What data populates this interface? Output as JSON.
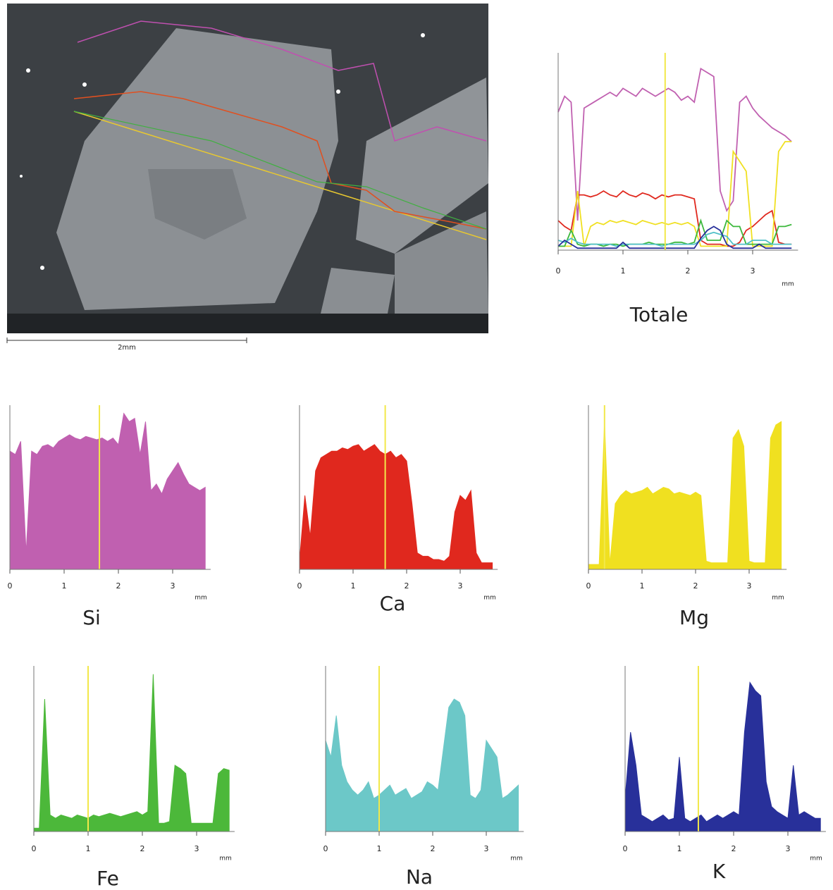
{
  "image": {
    "scale_label": "2mm"
  },
  "chart_data": [
    {
      "type": "line",
      "title": "Totale",
      "xlabel": "mm",
      "xlim": [
        0,
        3.7
      ],
      "xticks": [
        0,
        1,
        2,
        3
      ],
      "ylim": [
        0,
        100
      ],
      "cursor_x": 1.65,
      "cursor_color": "#f2e84a",
      "x": [
        0,
        0.1,
        0.2,
        0.3,
        0.4,
        0.5,
        0.6,
        0.7,
        0.8,
        0.9,
        1,
        1.1,
        1.2,
        1.3,
        1.4,
        1.5,
        1.6,
        1.7,
        1.8,
        1.9,
        2,
        2.1,
        2.2,
        2.3,
        2.4,
        2.5,
        2.6,
        2.7,
        2.8,
        2.9,
        3,
        3.1,
        3.2,
        3.3,
        3.4,
        3.5,
        3.6
      ],
      "series": [
        {
          "color": "#c060b0",
          "values": [
            70,
            78,
            75,
            15,
            72,
            74,
            76,
            78,
            80,
            78,
            82,
            80,
            78,
            82,
            80,
            78,
            80,
            82,
            80,
            76,
            78,
            75,
            92,
            90,
            88,
            30,
            20,
            25,
            75,
            78,
            72,
            68,
            65,
            62,
            60,
            58,
            55
          ]
        },
        {
          "color": "#e0281e",
          "values": [
            15,
            12,
            10,
            28,
            28,
            27,
            28,
            30,
            28,
            27,
            30,
            28,
            27,
            29,
            28,
            26,
            28,
            27,
            28,
            28,
            27,
            26,
            5,
            3,
            3,
            3,
            2,
            2,
            4,
            10,
            12,
            15,
            18,
            20,
            4,
            3,
            3
          ]
        },
        {
          "color": "#f0e020",
          "values": [
            2,
            2,
            2,
            30,
            2,
            12,
            14,
            13,
            15,
            14,
            15,
            14,
            13,
            15,
            14,
            13,
            14,
            13,
            14,
            13,
            14,
            12,
            2,
            2,
            2,
            2,
            2,
            50,
            45,
            40,
            2,
            2,
            2,
            2,
            50,
            55,
            55
          ]
        },
        {
          "color": "#3cb83c",
          "values": [
            2,
            2,
            10,
            3,
            2,
            3,
            3,
            2,
            3,
            3,
            2,
            3,
            3,
            3,
            4,
            3,
            3,
            3,
            4,
            4,
            3,
            4,
            15,
            5,
            5,
            5,
            15,
            12,
            12,
            3,
            3,
            3,
            3,
            3,
            12,
            12,
            13
          ]
        },
        {
          "color": "#50c0c8",
          "values": [
            5,
            4,
            6,
            4,
            3,
            3,
            3,
            3,
            3,
            2,
            3,
            3,
            3,
            3,
            3,
            3,
            2,
            3,
            3,
            3,
            3,
            3,
            5,
            8,
            9,
            8,
            7,
            3,
            3,
            3,
            5,
            5,
            5,
            3,
            3,
            3,
            3
          ]
        },
        {
          "color": "#28309a",
          "values": [
            2,
            5,
            3,
            1,
            1,
            1,
            1,
            1,
            1,
            1,
            4,
            1,
            1,
            1,
            1,
            1,
            1,
            1,
            1,
            1,
            1,
            1,
            6,
            10,
            12,
            10,
            3,
            1,
            1,
            1,
            1,
            3,
            1,
            1,
            1,
            1,
            1
          ]
        }
      ]
    },
    {
      "type": "area",
      "title": "Si",
      "xlabel": "mm",
      "xlim": [
        0,
        3.7
      ],
      "xticks": [
        0,
        1,
        2,
        3
      ],
      "ylim": [
        0,
        100
      ],
      "cursor_x": 1.65,
      "cursor_color": "#f2e84a",
      "color": "#c060b0",
      "x": [
        0,
        0.1,
        0.2,
        0.3,
        0.4,
        0.5,
        0.6,
        0.7,
        0.8,
        0.9,
        1,
        1.1,
        1.2,
        1.3,
        1.4,
        1.5,
        1.6,
        1.7,
        1.8,
        1.9,
        2,
        2.1,
        2.2,
        2.3,
        2.4,
        2.5,
        2.6,
        2.7,
        2.8,
        2.9,
        3,
        3.1,
        3.2,
        3.3,
        3.4,
        3.5,
        3.6
      ],
      "values": [
        72,
        70,
        78,
        10,
        72,
        70,
        75,
        76,
        74,
        78,
        80,
        82,
        80,
        79,
        81,
        80,
        79,
        80,
        78,
        80,
        76,
        95,
        90,
        92,
        70,
        90,
        48,
        52,
        46,
        55,
        60,
        65,
        58,
        52,
        50,
        48,
        50
      ]
    },
    {
      "type": "area",
      "title": "Ca",
      "xlabel": "mm",
      "xlim": [
        0,
        3.7
      ],
      "xticks": [
        0,
        1,
        2,
        3
      ],
      "ylim": [
        0,
        100
      ],
      "cursor_x": 1.6,
      "cursor_color": "#f2e84a",
      "color": "#e0281e",
      "x": [
        0,
        0.1,
        0.2,
        0.3,
        0.4,
        0.5,
        0.6,
        0.7,
        0.8,
        0.9,
        1,
        1.1,
        1.2,
        1.3,
        1.4,
        1.5,
        1.6,
        1.7,
        1.8,
        1.9,
        2,
        2.1,
        2.2,
        2.3,
        2.4,
        2.5,
        2.6,
        2.7,
        2.8,
        2.9,
        3,
        3.1,
        3.2,
        3.3,
        3.4,
        3.5,
        3.6
      ],
      "values": [
        5,
        45,
        20,
        60,
        68,
        70,
        72,
        72,
        74,
        73,
        75,
        76,
        72,
        74,
        76,
        72,
        70,
        72,
        68,
        70,
        66,
        40,
        10,
        8,
        8,
        6,
        6,
        5,
        8,
        35,
        45,
        42,
        48,
        10,
        4,
        4,
        4
      ]
    },
    {
      "type": "area",
      "title": "Mg",
      "xlabel": "mm",
      "xlim": [
        0,
        3.7
      ],
      "xticks": [
        0,
        1,
        2,
        3
      ],
      "ylim": [
        0,
        100
      ],
      "cursor_x": 0.3,
      "cursor_color": "#f2e84a",
      "color": "#f0e020",
      "x": [
        0,
        0.1,
        0.2,
        0.3,
        0.4,
        0.5,
        0.6,
        0.7,
        0.8,
        0.9,
        1,
        1.1,
        1.2,
        1.3,
        1.4,
        1.5,
        1.6,
        1.7,
        1.8,
        1.9,
        2,
        2.1,
        2.2,
        2.3,
        2.4,
        2.5,
        2.6,
        2.7,
        2.8,
        2.9,
        3,
        3.1,
        3.2,
        3.3,
        3.4,
        3.5,
        3.6
      ],
      "values": [
        3,
        3,
        3,
        90,
        3,
        40,
        45,
        48,
        46,
        47,
        48,
        50,
        46,
        48,
        50,
        49,
        46,
        47,
        46,
        45,
        47,
        45,
        5,
        4,
        4,
        4,
        4,
        80,
        85,
        75,
        5,
        4,
        4,
        4,
        80,
        88,
        90
      ]
    },
    {
      "type": "area",
      "title": "Fe",
      "xlabel": "mm",
      "xlim": [
        0,
        3.7
      ],
      "xticks": [
        0,
        1,
        2,
        3
      ],
      "ylim": [
        0,
        100
      ],
      "cursor_x": 1.0,
      "cursor_color": "#f2e84a",
      "color": "#4cb83a",
      "x": [
        0,
        0.1,
        0.2,
        0.3,
        0.4,
        0.5,
        0.6,
        0.7,
        0.8,
        0.9,
        1,
        1.1,
        1.2,
        1.3,
        1.4,
        1.5,
        1.6,
        1.7,
        1.8,
        1.9,
        2,
        2.1,
        2.2,
        2.3,
        2.4,
        2.5,
        2.6,
        2.7,
        2.8,
        2.9,
        3,
        3.1,
        3.2,
        3.3,
        3.4,
        3.5,
        3.6
      ],
      "values": [
        2,
        2,
        80,
        10,
        8,
        10,
        9,
        8,
        10,
        9,
        8,
        10,
        9,
        10,
        11,
        10,
        9,
        10,
        11,
        12,
        10,
        12,
        95,
        5,
        5,
        6,
        40,
        38,
        35,
        5,
        5,
        5,
        5,
        5,
        35,
        38,
        37
      ]
    },
    {
      "type": "area",
      "title": "Na",
      "xlabel": "mm",
      "xlim": [
        0,
        3.7
      ],
      "xticks": [
        0,
        1,
        2,
        3
      ],
      "ylim": [
        0,
        100
      ],
      "cursor_x": 1.0,
      "cursor_color": "#f2e84a",
      "color": "#6cc8c8",
      "x": [
        0,
        0.1,
        0.2,
        0.3,
        0.4,
        0.5,
        0.6,
        0.7,
        0.8,
        0.9,
        1,
        1.1,
        1.2,
        1.3,
        1.4,
        1.5,
        1.6,
        1.7,
        1.8,
        1.9,
        2,
        2.1,
        2.2,
        2.3,
        2.4,
        2.5,
        2.6,
        2.7,
        2.8,
        2.9,
        3,
        3.1,
        3.2,
        3.3,
        3.4,
        3.5,
        3.6
      ],
      "values": [
        55,
        45,
        70,
        40,
        30,
        25,
        22,
        25,
        30,
        20,
        22,
        25,
        28,
        22,
        24,
        26,
        20,
        22,
        24,
        30,
        28,
        25,
        50,
        75,
        80,
        78,
        70,
        22,
        20,
        25,
        55,
        50,
        45,
        20,
        22,
        25,
        28
      ]
    },
    {
      "type": "area",
      "title": "K",
      "xlabel": "mm",
      "xlim": [
        0,
        3.7
      ],
      "xticks": [
        0,
        1,
        2,
        3
      ],
      "ylim": [
        0,
        100
      ],
      "cursor_x": 1.35,
      "cursor_color": "#f2e84a",
      "color": "#28309a",
      "x": [
        0,
        0.1,
        0.2,
        0.3,
        0.4,
        0.5,
        0.6,
        0.7,
        0.8,
        0.9,
        1,
        1.1,
        1.2,
        1.3,
        1.4,
        1.5,
        1.6,
        1.7,
        1.8,
        1.9,
        2,
        2.1,
        2.2,
        2.3,
        2.4,
        2.5,
        2.6,
        2.7,
        2.8,
        2.9,
        3,
        3.1,
        3.2,
        3.3,
        3.4,
        3.5,
        3.6
      ],
      "values": [
        20,
        60,
        40,
        10,
        8,
        6,
        8,
        10,
        7,
        8,
        45,
        8,
        6,
        8,
        10,
        6,
        8,
        10,
        8,
        10,
        12,
        10,
        60,
        90,
        85,
        82,
        30,
        15,
        12,
        10,
        8,
        40,
        10,
        12,
        10,
        8,
        8
      ]
    }
  ]
}
